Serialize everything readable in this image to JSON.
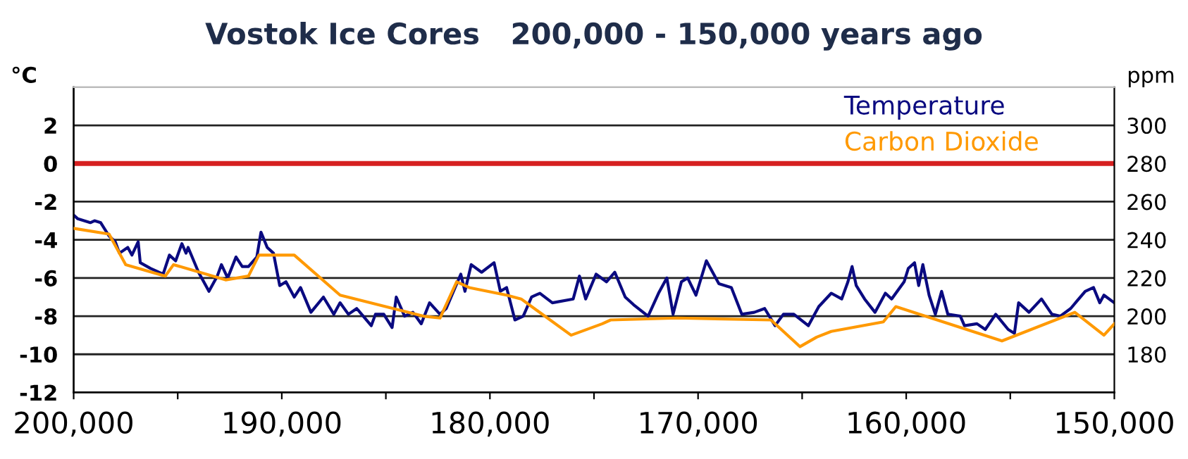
{
  "chart_data": {
    "type": "line",
    "title": "Vostok Ice Cores   200,000 - 150,000 years ago",
    "ylabel": "°C",
    "y2label": "ppm",
    "xlim": [
      200000,
      150000
    ],
    "xticks": [
      {
        "value": 200000,
        "label": "200,000"
      },
      {
        "value": 195000,
        "label": null
      },
      {
        "value": 190000,
        "label": "190,000"
      },
      {
        "value": 185000,
        "label": null
      },
      {
        "value": 180000,
        "label": "180,000"
      },
      {
        "value": 175000,
        "label": null
      },
      {
        "value": 170000,
        "label": "170,000"
      },
      {
        "value": 165000,
        "label": null
      },
      {
        "value": 160000,
        "label": "160,000"
      },
      {
        "value": 155000,
        "label": null
      },
      {
        "value": 150000,
        "label": "150,000"
      }
    ],
    "ylim": [
      -12,
      4
    ],
    "yticks": [
      -12,
      -10,
      -8,
      -6,
      -4,
      -2,
      0,
      2
    ],
    "y2lim": [
      160,
      320
    ],
    "y2ticks": [
      180,
      200,
      220,
      240,
      260,
      280,
      300
    ],
    "grid": "y",
    "legend": "top right",
    "ref_lines": [
      {
        "axis": "y",
        "value": 0,
        "color": "#d62020"
      }
    ],
    "series": [
      {
        "name": "Temperature",
        "color": "#0a0a80",
        "x": [
          200000,
          199800,
          199200,
          199000,
          198700,
          198300,
          198000,
          197800,
          197400,
          197200,
          196900,
          196800,
          196300,
          195700,
          195400,
          195100,
          194800,
          194600,
          194500,
          194000,
          193500,
          193100,
          192900,
          192600,
          192200,
          191900,
          191600,
          191200,
          191000,
          190700,
          190400,
          190100,
          189800,
          189400,
          189100,
          188600,
          188000,
          187500,
          187200,
          186800,
          186400,
          185700,
          185500,
          185100,
          184700,
          184500,
          184100,
          183700,
          183300,
          182900,
          182400,
          182100,
          181400,
          181200,
          180900,
          180400,
          179800,
          179500,
          179200,
          178800,
          178400,
          178000,
          177600,
          177000,
          176000,
          175700,
          175400,
          174900,
          174400,
          174000,
          173500,
          173100,
          172400,
          171900,
          171500,
          171200,
          170800,
          170500,
          170100,
          169600,
          169000,
          168400,
          167900,
          167300,
          166800,
          166300,
          165900,
          165400,
          164700,
          164200,
          163600,
          163100,
          162800,
          162600,
          162400,
          162000,
          161500,
          161000,
          160700,
          160100,
          159900,
          159600,
          159400,
          159200,
          158900,
          158600,
          158300,
          158000,
          157400,
          157200,
          156600,
          156200,
          155700,
          155100,
          154800,
          154600,
          154100,
          153500,
          153000,
          152600,
          152100,
          151400,
          151000,
          150700,
          150500,
          150000
        ],
        "values": [
          -2.7,
          -2.9,
          -3.1,
          -3.0,
          -3.1,
          -3.8,
          -4.1,
          -4.7,
          -4.4,
          -4.8,
          -4.1,
          -5.2,
          -5.5,
          -5.8,
          -4.8,
          -5.1,
          -4.2,
          -4.7,
          -4.4,
          -5.7,
          -6.7,
          -5.9,
          -5.3,
          -6.0,
          -4.9,
          -5.4,
          -5.4,
          -4.9,
          -3.6,
          -4.4,
          -4.7,
          -6.4,
          -6.2,
          -7.0,
          -6.5,
          -7.8,
          -7.0,
          -7.9,
          -7.3,
          -7.9,
          -7.6,
          -8.5,
          -7.9,
          -7.9,
          -8.6,
          -7.0,
          -8.0,
          -7.8,
          -8.4,
          -7.3,
          -7.9,
          -7.6,
          -5.8,
          -6.7,
          -5.3,
          -5.7,
          -5.2,
          -6.7,
          -6.5,
          -8.2,
          -8.0,
          -7.0,
          -6.8,
          -7.3,
          -7.1,
          -5.9,
          -7.1,
          -5.8,
          -6.2,
          -5.7,
          -7.0,
          -7.4,
          -8.0,
          -6.8,
          -6.0,
          -7.9,
          -6.2,
          -6.0,
          -6.9,
          -5.1,
          -6.3,
          -6.5,
          -7.9,
          -7.8,
          -7.6,
          -8.5,
          -7.9,
          -7.9,
          -8.5,
          -7.5,
          -6.8,
          -7.1,
          -6.2,
          -5.4,
          -6.4,
          -7.1,
          -7.8,
          -6.8,
          -7.1,
          -6.2,
          -5.5,
          -5.2,
          -6.4,
          -5.3,
          -6.9,
          -7.9,
          -6.7,
          -7.9,
          -8.0,
          -8.5,
          -8.4,
          -8.7,
          -7.9,
          -8.7,
          -8.9,
          -7.3,
          -7.8,
          -7.1,
          -7.9,
          -8.0,
          -7.6,
          -6.7,
          -6.5,
          -7.3,
          -6.9,
          -7.3
        ]
      },
      {
        "name": "Carbon Dioxide",
        "color": "#ff9900",
        "axis": "y2",
        "x": [
          200000,
          198300,
          197500,
          195600,
          195200,
          192700,
          191600,
          191100,
          189400,
          187200,
          183200,
          182400,
          181600,
          181000,
          179200,
          178500,
          176100,
          174600,
          174200,
          171000,
          166500,
          165100,
          164300,
          163600,
          161100,
          160500,
          155400,
          151900,
          150500,
          150000
        ],
        "values": [
          246,
          243,
          227,
          221,
          227,
          219,
          221,
          232,
          232,
          211,
          200,
          199,
          218,
          215,
          211,
          209,
          190,
          196,
          198,
          199,
          198,
          184,
          189,
          192,
          197,
          205,
          187,
          202,
          190,
          196
        ]
      }
    ]
  }
}
